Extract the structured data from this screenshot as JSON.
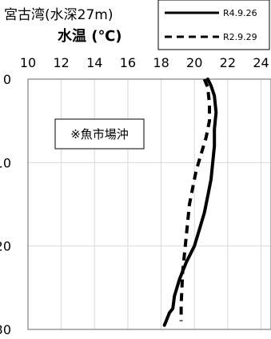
{
  "chart_data": {
    "type": "line",
    "title_line1": "宮古湾(水深27m)",
    "title_line2": "水温 (℃)",
    "annotation": "※魚市場沖",
    "x_ticks": [
      "10",
      "12",
      "14",
      "16",
      "18",
      "20",
      "22",
      "24"
    ],
    "y_ticks": [
      "0",
      "10",
      "20",
      "30"
    ],
    "xlim": [
      10,
      24
    ],
    "ylim": [
      0,
      30
    ],
    "grid": true,
    "legend_position": "top-right",
    "series": [
      {
        "name": "R4.9.26",
        "style": "solid",
        "color": "#000000",
        "points": [
          {
            "x": 20.8,
            "y": 0
          },
          {
            "x": 21.0,
            "y": 0.8
          },
          {
            "x": 21.2,
            "y": 2
          },
          {
            "x": 21.3,
            "y": 4
          },
          {
            "x": 21.2,
            "y": 6
          },
          {
            "x": 21.2,
            "y": 8
          },
          {
            "x": 21.1,
            "y": 10
          },
          {
            "x": 21.0,
            "y": 12
          },
          {
            "x": 20.8,
            "y": 14
          },
          {
            "x": 20.6,
            "y": 16
          },
          {
            "x": 20.3,
            "y": 18
          },
          {
            "x": 20.0,
            "y": 20
          },
          {
            "x": 19.5,
            "y": 22
          },
          {
            "x": 19.1,
            "y": 24
          },
          {
            "x": 18.8,
            "y": 26
          },
          {
            "x": 18.7,
            "y": 27.5
          },
          {
            "x": 18.5,
            "y": 28
          },
          {
            "x": 18.3,
            "y": 29
          },
          {
            "x": 18.2,
            "y": 29.5
          }
        ]
      },
      {
        "name": "R2.9.29",
        "style": "dashed",
        "color": "#000000",
        "points": [
          {
            "x": 20.6,
            "y": 0
          },
          {
            "x": 20.8,
            "y": 1
          },
          {
            "x": 20.9,
            "y": 3
          },
          {
            "x": 20.9,
            "y": 5
          },
          {
            "x": 20.7,
            "y": 7
          },
          {
            "x": 20.4,
            "y": 9
          },
          {
            "x": 20.1,
            "y": 11
          },
          {
            "x": 19.9,
            "y": 13
          },
          {
            "x": 19.7,
            "y": 15
          },
          {
            "x": 19.6,
            "y": 17
          },
          {
            "x": 19.5,
            "y": 19
          },
          {
            "x": 19.4,
            "y": 21
          },
          {
            "x": 19.3,
            "y": 23
          },
          {
            "x": 19.25,
            "y": 25
          },
          {
            "x": 19.2,
            "y": 27
          },
          {
            "x": 19.2,
            "y": 29
          }
        ]
      }
    ]
  }
}
